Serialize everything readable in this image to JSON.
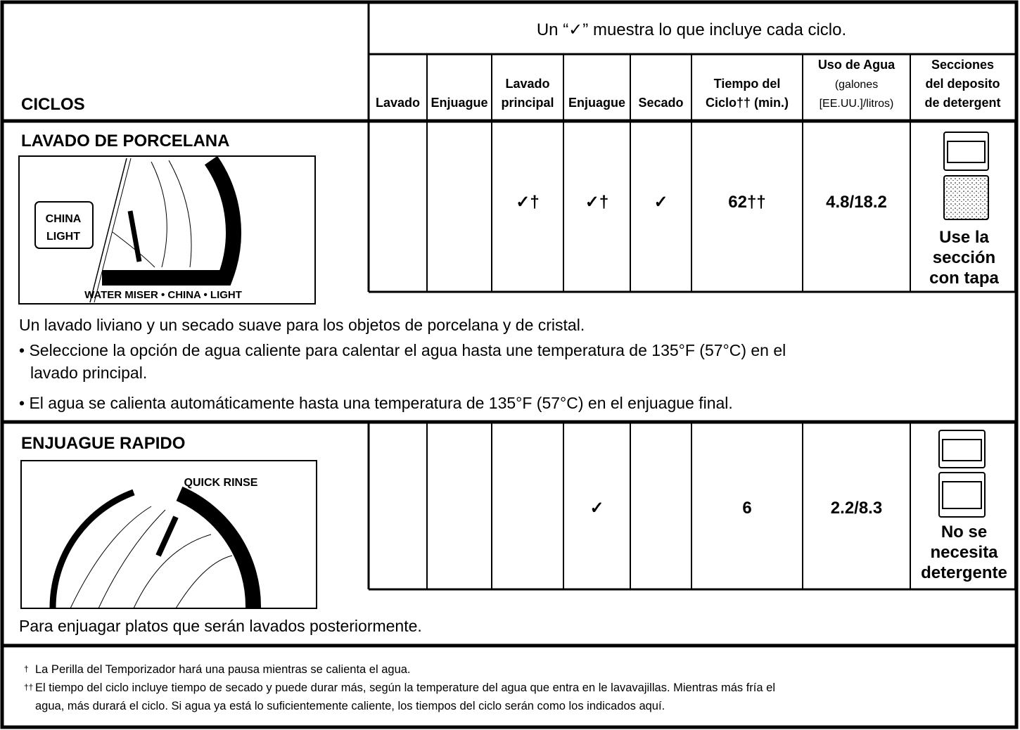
{
  "header": {
    "note": "Un “✓” muestra lo que incluye cada ciclo.",
    "cycles": "CICLOS",
    "columns": [
      [
        "Lavado"
      ],
      [
        "Enjuague"
      ],
      [
        "Lavado",
        "principal"
      ],
      [
        "Enjuague"
      ],
      [
        "Secado"
      ],
      [
        "Tiempo del",
        "Ciclo†† (min.)"
      ],
      [
        "Uso de Agua",
        "(galones",
        "[EE.UU.]/litros)"
      ],
      [
        "Secciones",
        "del deposito",
        "de detergent"
      ]
    ]
  },
  "cycles": [
    {
      "name": "LAVADO DE PORCELANA",
      "dial": [
        "CHINA",
        "LIGHT",
        "WATER MISER • CHINA • LIGHT"
      ],
      "cells": [
        null,
        null,
        "✓†",
        "✓†",
        "✓"
      ],
      "time": "62††",
      "water": "4.8/18.2",
      "detergent": [
        "Use la",
        "sección",
        "con tapa"
      ],
      "description": "Un lavado liviano y un secado suave para los objetos de porcelana y de cristal.",
      "bullets": [
        [
          "• Seleccione la opción de agua caliente para calentar el agua hasta une temperatura de 135°F (57°C) en el",
          "lavado principal."
        ],
        [
          "• El agua se calienta automáticamente hasta una temperatura de 135°F (57°C) en el enjuague final."
        ]
      ]
    },
    {
      "name": "ENJUAGUE RAPIDO",
      "dial": [
        "QUICK RINSE"
      ],
      "cells": [
        null,
        null,
        null,
        "✓",
        null
      ],
      "time": "6",
      "water": "2.2/8.3",
      "detergent": [
        "No se",
        "necesita",
        "detergente"
      ],
      "description": "Para enjuagar platos que serán lavados posteriormente.",
      "bullets": []
    }
  ],
  "footnotes": [
    {
      "marker": "†",
      "lines": [
        "La Perilla del Temporizador hará una pausa mientras se calienta el agua."
      ]
    },
    {
      "marker": "††",
      "lines": [
        "El tiempo del ciclo incluye tiempo de secado y puede durar más, según la temperature del agua que entra en le lavavajillas. Mientras más fría el",
        "agua, más durará el ciclo. Si agua ya está lo suficientemente caliente, los tiempos del ciclo serán como los indicados aquí."
      ]
    }
  ]
}
